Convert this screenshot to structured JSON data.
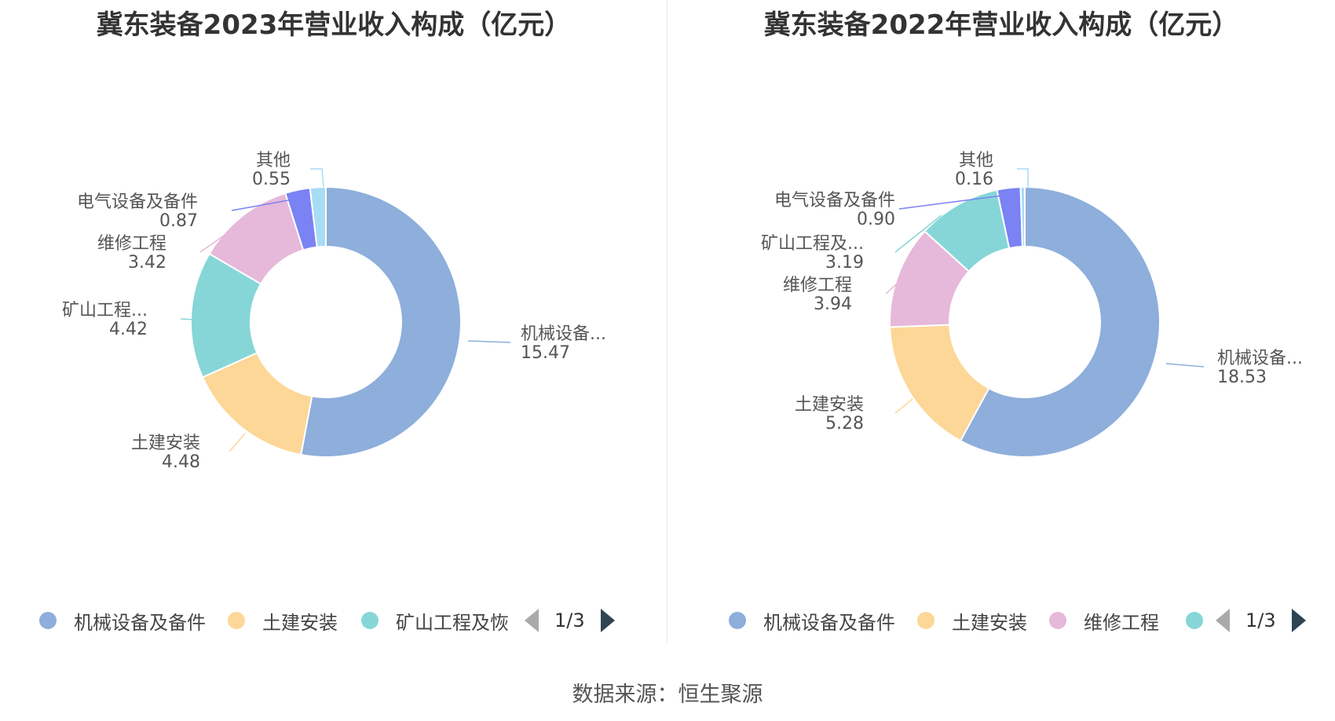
{
  "source": "数据来源：恒生聚源",
  "chart_data": [
    {
      "type": "pie",
      "title": "冀东装备2023年营业收入构成（亿元）",
      "slices": [
        {
          "name": "机械设备及备件",
          "label": "机械设备...",
          "value": 15.47,
          "value_label": "15.47",
          "color": "#8eaedb"
        },
        {
          "name": "土建安装",
          "label": "土建安装",
          "value": 4.48,
          "value_label": "4.48",
          "color": "#fdd797"
        },
        {
          "name": "矿山工程及恢",
          "label": "矿山工程...",
          "value": 4.42,
          "value_label": "4.42",
          "color": "#86d6d8"
        },
        {
          "name": "维修工程",
          "label": "维修工程",
          "value": 3.42,
          "value_label": "3.42",
          "color": "#e6b8d9"
        },
        {
          "name": "电气设备及备件",
          "label": "电气设备及备件",
          "value": 0.87,
          "value_label": "0.87",
          "color": "#7b82f4"
        },
        {
          "name": "其他",
          "label": "其他",
          "value": 0.55,
          "value_label": "0.55",
          "color": "#a7dcf5"
        }
      ],
      "legend": {
        "items": [
          "机械设备及备件",
          "土建安装",
          "矿山工程及恢"
        ],
        "item_colors": [
          "#8eaedb",
          "#fdd797",
          "#86d6d8"
        ],
        "page": "1/3"
      }
    },
    {
      "type": "pie",
      "title": "冀东装备2022年营业收入构成（亿元）",
      "slices": [
        {
          "name": "机械设备及备件",
          "label": "机械设备...",
          "value": 18.53,
          "value_label": "18.53",
          "color": "#8eaedb"
        },
        {
          "name": "土建安装",
          "label": "土建安装",
          "value": 5.28,
          "value_label": "5.28",
          "color": "#fdd797"
        },
        {
          "name": "维修工程",
          "label": "维修工程",
          "value": 3.94,
          "value_label": "3.94",
          "color": "#e6b8d9"
        },
        {
          "name": "矿山工程及",
          "label": "矿山工程及...",
          "value": 3.19,
          "value_label": "3.19",
          "color": "#86d6d8"
        },
        {
          "name": "电气设备及备件",
          "label": "电气设备及备件",
          "value": 0.9,
          "value_label": "0.90",
          "color": "#7b82f4"
        },
        {
          "name": "其他",
          "label": "其他",
          "value": 0.16,
          "value_label": "0.16",
          "color": "#a7dcf5"
        }
      ],
      "legend": {
        "items": [
          "机械设备及备件",
          "土建安装",
          "维修工程",
          ""
        ],
        "item_colors": [
          "#8eaedb",
          "#fdd797",
          "#e6b8d9",
          "#86d6d8"
        ],
        "page": "1/3"
      }
    }
  ]
}
